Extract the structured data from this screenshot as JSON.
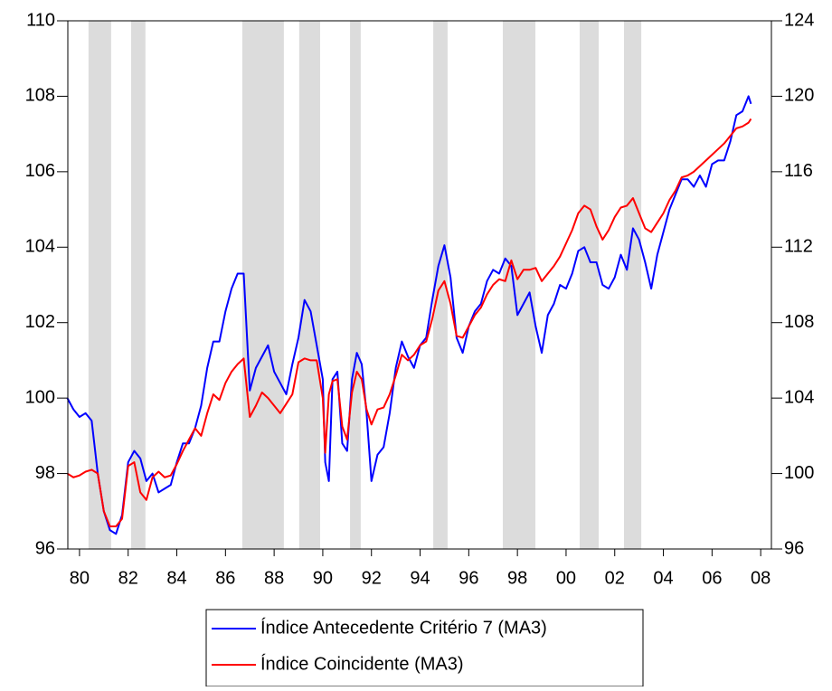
{
  "chart_data": {
    "type": "line",
    "x": [
      1979.5,
      1979.75,
      1980,
      1980.25,
      1980.5,
      1980.75,
      1981,
      1981.25,
      1981.5,
      1981.75,
      1982,
      1982.25,
      1982.5,
      1982.75,
      1983,
      1983.25,
      1983.5,
      1983.75,
      1984,
      1984.25,
      1984.5,
      1984.75,
      1985,
      1985.25,
      1985.5,
      1985.75,
      1986,
      1986.25,
      1986.5,
      1986.75,
      1987,
      1987.25,
      1987.5,
      1987.75,
      1988,
      1988.25,
      1988.5,
      1988.75,
      1989,
      1989.25,
      1989.5,
      1989.75,
      1990,
      1990.1,
      1990.25,
      1990.4,
      1990.6,
      1990.8,
      1991,
      1991.2,
      1991.4,
      1991.6,
      1991.8,
      1992,
      1992.25,
      1992.5,
      1992.75,
      1993,
      1993.25,
      1993.5,
      1993.75,
      1994,
      1994.25,
      1994.5,
      1994.75,
      1995,
      1995.25,
      1995.5,
      1995.75,
      1996,
      1996.25,
      1996.5,
      1996.75,
      1997,
      1997.25,
      1997.5,
      1997.75,
      1998,
      1998.25,
      1998.5,
      1998.75,
      1999,
      1999.25,
      1999.5,
      1999.75,
      2000,
      2000.25,
      2000.5,
      2000.75,
      2001,
      2001.25,
      2001.5,
      2001.75,
      2002,
      2002.25,
      2002.5,
      2002.75,
      2003,
      2003.25,
      2003.5,
      2003.75,
      2004,
      2004.25,
      2004.5,
      2004.75,
      2005,
      2005.25,
      2005.5,
      2005.75,
      2006,
      2006.25,
      2006.5,
      2006.75,
      2007,
      2007.25,
      2007.5,
      2007.6
    ],
    "series": [
      {
        "name": "Índice Antecedente Critério 7 (MA3)",
        "color": "#0000ff",
        "axis": "y",
        "values": [
          100.0,
          99.7,
          99.5,
          99.6,
          99.4,
          98.0,
          97.0,
          96.5,
          96.4,
          96.9,
          98.3,
          98.6,
          98.4,
          97.8,
          98.0,
          97.5,
          97.6,
          97.7,
          98.3,
          98.8,
          98.8,
          99.2,
          99.8,
          100.8,
          101.5,
          101.5,
          102.3,
          102.9,
          103.3,
          103.3,
          100.2,
          100.8,
          101.1,
          101.4,
          100.7,
          100.4,
          100.1,
          100.9,
          101.6,
          102.6,
          102.3,
          101.4,
          100.5,
          98.3,
          97.8,
          100.5,
          100.7,
          98.8,
          98.6,
          100.5,
          101.2,
          100.9,
          99.6,
          97.8,
          98.5,
          98.7,
          99.6,
          100.8,
          101.5,
          101.1,
          100.8,
          101.4,
          101.6,
          102.6,
          103.5,
          104.05,
          103.2,
          101.6,
          101.2,
          101.9,
          102.3,
          102.5,
          103.1,
          103.4,
          103.3,
          103.7,
          103.5,
          102.2,
          102.5,
          102.8,
          101.9,
          101.2,
          102.2,
          102.5,
          103.0,
          102.9,
          103.3,
          103.9,
          104.0,
          103.6,
          103.6,
          103.0,
          102.9,
          103.2,
          103.8,
          103.4,
          104.5,
          104.2,
          103.6,
          102.9,
          103.8,
          104.4,
          105.0,
          105.4,
          105.8,
          105.8,
          105.6,
          105.9,
          105.6,
          106.2,
          106.3,
          106.3,
          106.8,
          107.5,
          107.6,
          108.0,
          107.8
        ]
      },
      {
        "name": "Índice Coincidente (MA3)",
        "color": "#ff0000",
        "axis": "y2",
        "values": [
          100.0,
          99.8,
          99.9,
          100.1,
          100.2,
          100.0,
          98.0,
          97.2,
          97.2,
          97.6,
          100.4,
          100.6,
          99.0,
          98.6,
          99.8,
          100.1,
          99.8,
          99.9,
          100.5,
          101.2,
          101.8,
          102.4,
          102.0,
          103.2,
          104.2,
          103.9,
          104.8,
          105.4,
          105.8,
          106.1,
          103.0,
          103.6,
          104.3,
          104.0,
          103.6,
          103.2,
          103.7,
          104.2,
          105.9,
          106.1,
          106.0,
          106.0,
          104.0,
          101.1,
          104.2,
          104.9,
          105.0,
          102.5,
          101.8,
          104.3,
          105.4,
          105.0,
          103.4,
          102.6,
          103.4,
          103.5,
          104.2,
          105.2,
          106.3,
          106.0,
          106.3,
          106.8,
          107.0,
          108.2,
          109.7,
          110.2,
          109.0,
          107.3,
          107.2,
          107.8,
          108.4,
          108.8,
          109.5,
          110.0,
          110.3,
          110.2,
          111.3,
          110.3,
          110.8,
          110.8,
          110.9,
          110.2,
          110.6,
          111.0,
          111.5,
          112.2,
          112.9,
          113.8,
          114.2,
          114.0,
          113.1,
          112.4,
          112.9,
          113.6,
          114.1,
          114.2,
          114.6,
          113.8,
          113.0,
          112.8,
          113.3,
          113.8,
          114.5,
          115.0,
          115.7,
          115.8,
          116.0,
          116.3,
          116.6,
          116.9,
          117.2,
          117.5,
          117.9,
          118.3,
          118.4,
          118.6,
          118.8
        ]
      }
    ],
    "shaded": [
      [
        1980.37,
        1981.3
      ],
      [
        1982.12,
        1982.71
      ],
      [
        1986.69,
        1988.4
      ],
      [
        1989.03,
        1989.89
      ],
      [
        1991.12,
        1991.56
      ],
      [
        1994.54,
        1995.13
      ],
      [
        1997.4,
        1998.74
      ],
      [
        2000.56,
        2001.34
      ],
      [
        2002.38,
        2003.09
      ]
    ],
    "shade_color": "#dcdcdc",
    "xlim": [
      1979.52,
      2008.44
    ],
    "xticks": [
      {
        "value": 1980,
        "label": "80"
      },
      {
        "value": 1982,
        "label": "82"
      },
      {
        "value": 1984,
        "label": "84"
      },
      {
        "value": 1986,
        "label": "86"
      },
      {
        "value": 1988,
        "label": "88"
      },
      {
        "value": 1990,
        "label": "90"
      },
      {
        "value": 1992,
        "label": "92"
      },
      {
        "value": 1994,
        "label": "94"
      },
      {
        "value": 1996,
        "label": "96"
      },
      {
        "value": 1998,
        "label": "98"
      },
      {
        "value": 2000,
        "label": "00"
      },
      {
        "value": 2002,
        "label": "02"
      },
      {
        "value": 2004,
        "label": "04"
      },
      {
        "value": 2006,
        "label": "06"
      },
      {
        "value": 2008,
        "label": "08"
      }
    ],
    "ylim": [
      96,
      110
    ],
    "yticks": [
      96,
      98,
      100,
      102,
      104,
      106,
      108,
      110
    ],
    "y2lim": [
      96,
      124
    ],
    "y2ticks": [
      96,
      100,
      104,
      108,
      112,
      116,
      120,
      124
    ],
    "legend": "bottom"
  }
}
